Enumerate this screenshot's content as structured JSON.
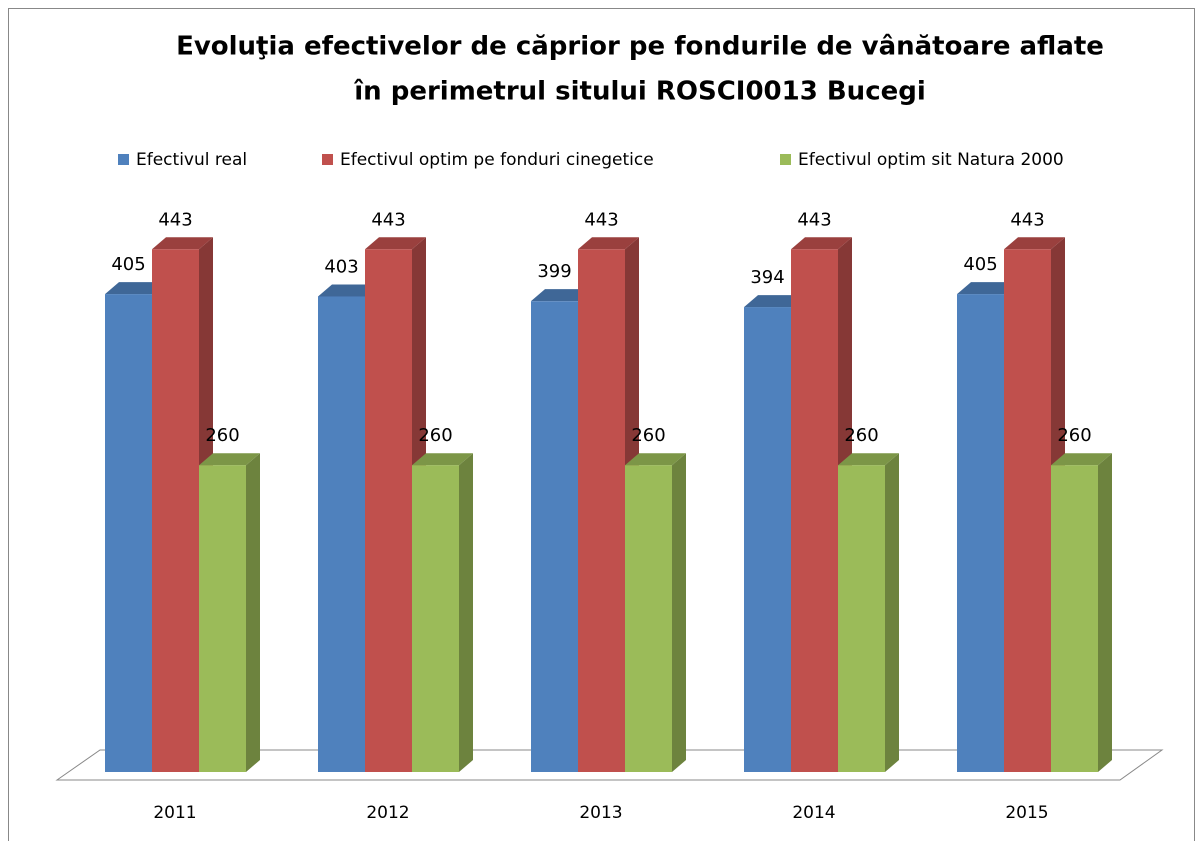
{
  "chart_data": {
    "type": "bar",
    "title": [
      "Evoluţia efectivelor de căprior pe fondurile de vânătoare aflate",
      "în perimetrul sitului ROSCI0013 Bucegi"
    ],
    "categories": [
      "2011",
      "2012",
      "2013",
      "2014",
      "2015"
    ],
    "series": [
      {
        "name": "Efectivul real",
        "color": "#4f81bd",
        "values": [
          405,
          403,
          399,
          394,
          405
        ]
      },
      {
        "name": "Efectivul optim pe fonduri cinegetice",
        "color": "#c0504d",
        "values": [
          443,
          443,
          443,
          443,
          443
        ]
      },
      {
        "name": "Efectivul optim sit Natura 2000",
        "color": "#9bbb59",
        "values": [
          260,
          260,
          260,
          260,
          260
        ]
      }
    ],
    "ylim": [
      0,
      500
    ]
  }
}
